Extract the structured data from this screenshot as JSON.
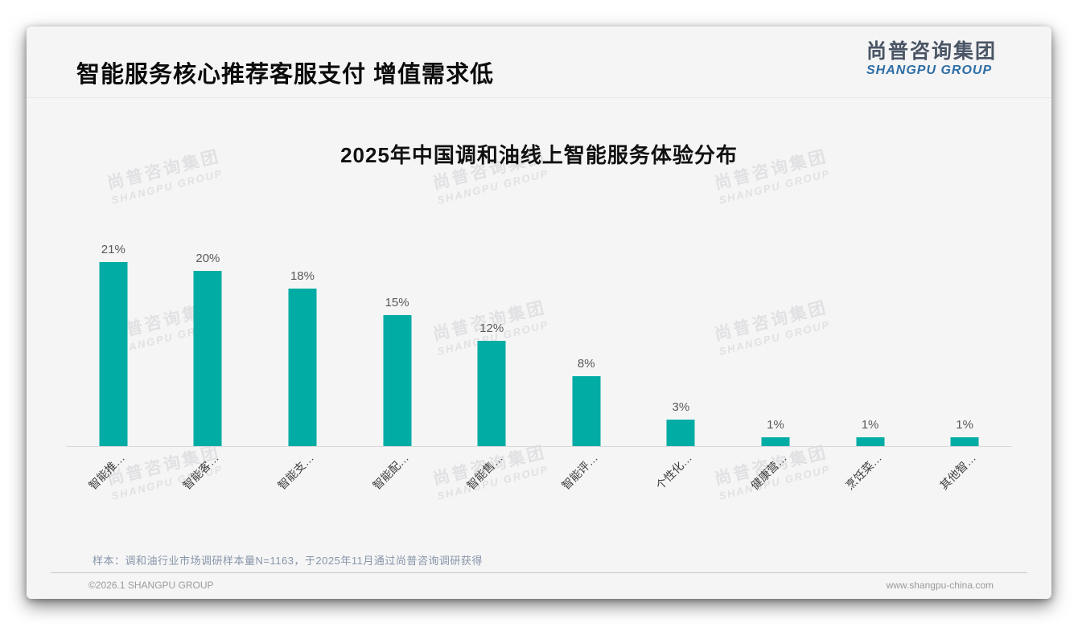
{
  "header": {
    "title": "智能服务核心推荐客服支付 增值需求低"
  },
  "logo": {
    "cn": "尚普咨询集团",
    "en": "SHANGPU GROUP"
  },
  "watermark": {
    "cn": "尚普咨询集团",
    "en": "SHANGPU GROUP"
  },
  "chart_data": {
    "type": "bar",
    "title": "2025年中国调和油线上智能服务体验分布",
    "categories": [
      "智能推…",
      "智能客…",
      "智能支…",
      "智能配…",
      "智能售…",
      "智能评…",
      "个性化…",
      "健康营…",
      "烹饪菜…",
      "其他智…"
    ],
    "values": [
      21,
      20,
      18,
      15,
      12,
      8,
      3,
      1,
      1,
      1
    ],
    "unit": "%",
    "data_labels": [
      "21%",
      "20%",
      "18%",
      "15%",
      "12%",
      "8%",
      "3%",
      "1%",
      "1%",
      "1%"
    ],
    "bar_color": "#00aca3",
    "value_label_color": "#595959",
    "axis_line_color": "#d9d9d9",
    "xlabel": "",
    "ylabel": "",
    "ylim": [
      0,
      23
    ],
    "grid": false,
    "legend": false
  },
  "note": "样本：调和油行业市场调研样本量N=1163，于2025年11月通过尚普咨询调研获得",
  "footer": {
    "copyright": "©2026.1 SHANGPU GROUP",
    "website": "www.shangpu-china.com"
  },
  "colors": {
    "accent_teal": "#00aca3",
    "logo_blue": "#2e6da4",
    "logo_dark": "#4a5565",
    "slide_bg": "#f5f5f6"
  }
}
